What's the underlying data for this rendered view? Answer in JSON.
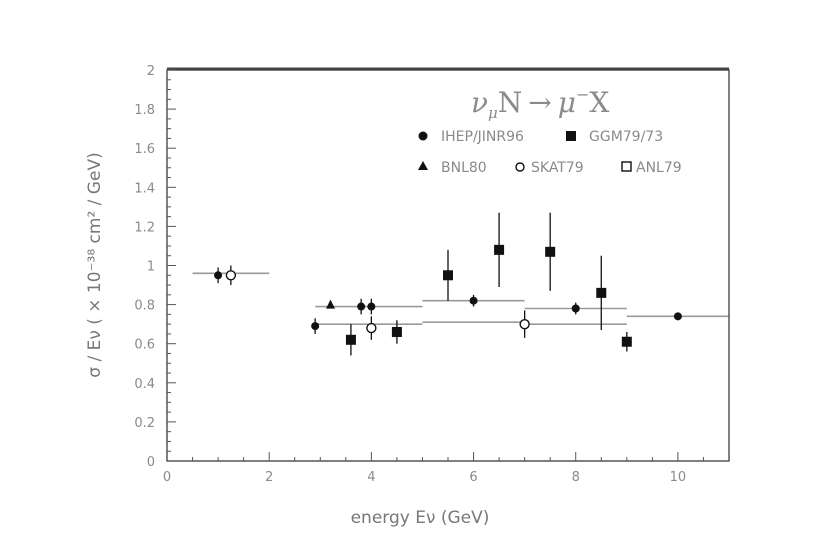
{
  "chart_data": {
    "type": "scatter",
    "title": "",
    "reaction": "ν_μN → μ⁻X",
    "reaction_parts": {
      "nu": "ν",
      "mu_sub": "μ",
      "n": "N",
      "arrow": "→",
      "mu": "μ",
      "minus": "−",
      "x": "X"
    },
    "xlabel": "energy Eν (GeV)",
    "ylabel": "σ / Eν ( × 10⁻³⁸ cm² / GeV)",
    "xlim": [
      0,
      11
    ],
    "ylim": [
      0,
      2
    ],
    "xticks": [
      0,
      2,
      4,
      6,
      8,
      10
    ],
    "yticks": [
      0,
      0.2,
      0.4,
      0.6,
      0.8,
      1,
      1.2,
      1.4,
      1.6,
      1.8,
      2
    ],
    "grid": false,
    "legend_position": "top-right",
    "series": [
      {
        "name": "IHEP/JINR96",
        "marker": "circle-filled",
        "points": [
          {
            "x": 1.0,
            "y": 0.95,
            "yerr": 0.04
          },
          {
            "x": 2.9,
            "y": 0.69,
            "yerr": 0.04
          },
          {
            "x": 3.8,
            "y": 0.79,
            "yerr": 0.04
          },
          {
            "x": 4.0,
            "y": 0.79,
            "yerr": 0.04
          },
          {
            "x": 6.0,
            "y": 0.82,
            "yerr": 0.03
          },
          {
            "x": 8.0,
            "y": 0.78,
            "yerr": 0.03
          },
          {
            "x": 10.0,
            "y": 0.74,
            "yerr": 0.02
          }
        ]
      },
      {
        "name": "GGM79/73",
        "marker": "square-filled",
        "points": [
          {
            "x": 3.6,
            "y": 0.62,
            "yerr": 0.08
          },
          {
            "x": 4.5,
            "y": 0.66,
            "yerr": 0.06
          },
          {
            "x": 5.5,
            "y": 0.95,
            "yerr": 0.13
          },
          {
            "x": 6.5,
            "y": 1.08,
            "yerr": 0.19
          },
          {
            "x": 7.5,
            "y": 1.07,
            "yerr": 0.2
          },
          {
            "x": 8.5,
            "y": 0.86,
            "yerr": 0.19
          },
          {
            "x": 9.0,
            "y": 0.61,
            "yerr": 0.05
          }
        ]
      },
      {
        "name": "BNL80",
        "marker": "triangle-filled",
        "points": [
          {
            "x": 3.2,
            "y": 0.8,
            "yerr": 0.02
          }
        ]
      },
      {
        "name": "SKAT79",
        "marker": "circle-open",
        "points": [
          {
            "x": 1.25,
            "y": 0.95,
            "yerr": 0.05
          },
          {
            "x": 4.0,
            "y": 0.68,
            "yerr": 0.06
          },
          {
            "x": 7.0,
            "y": 0.7,
            "yerr": 0.07
          }
        ]
      },
      {
        "name": "ANL79",
        "marker": "square-open",
        "points": []
      }
    ],
    "bands": [
      {
        "x0": 0.5,
        "x1": 2.0,
        "y": 0.96
      },
      {
        "x0": 2.9,
        "x1": 5.0,
        "y": 0.79
      },
      {
        "x0": 2.9,
        "x1": 5.0,
        "y": 0.7
      },
      {
        "x0": 5.0,
        "x1": 7.0,
        "y": 0.82
      },
      {
        "x0": 5.0,
        "x1": 7.0,
        "y": 0.71
      },
      {
        "x0": 7.0,
        "x1": 9.0,
        "y": 0.78
      },
      {
        "x0": 7.0,
        "x1": 9.0,
        "y": 0.7
      },
      {
        "x0": 9.0,
        "x1": 11.0,
        "y": 0.74
      }
    ],
    "colors": {
      "frame": "#555555",
      "marker": "#111111",
      "band": "#9a9a9a",
      "text": "#8a8a8a"
    }
  }
}
